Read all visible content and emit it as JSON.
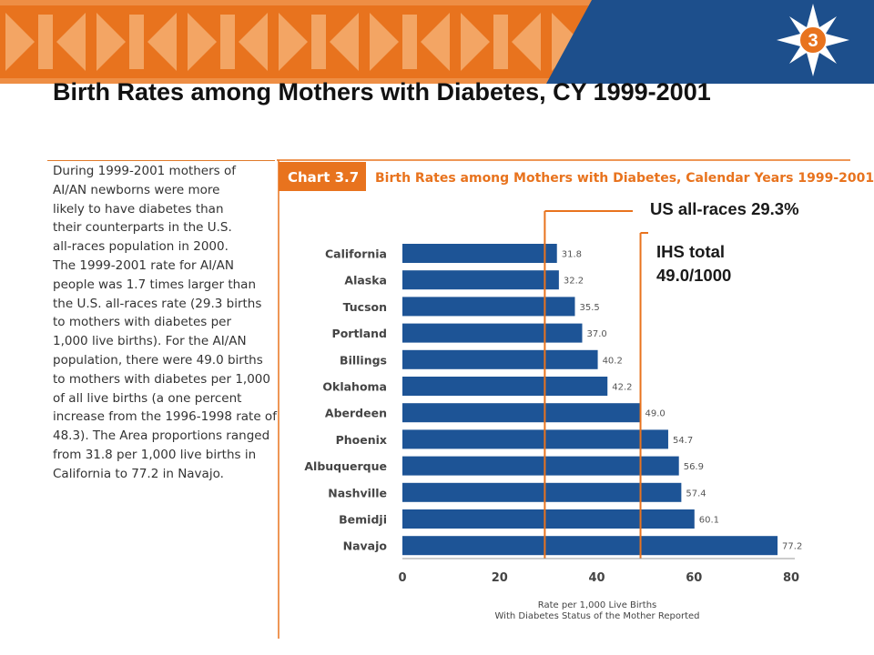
{
  "slide": {
    "title": "Birth Rates among Mothers with Diabetes, CY 1999-2001",
    "badge_number": "3",
    "banner_color": "#e8731e",
    "banner_pattern_color": "#f3a564",
    "banner_dark_color": "#1d4f8c"
  },
  "body_text": [
    "During 1999-2001 mothers of",
    "AI/AN newborns were more",
    "likely to have diabetes than",
    "their counterparts in the U.S.",
    "all-races population in 2000.",
    "The 1999-2001 rate for AI/AN",
    "people was 1.7 times larger than",
    "the U.S. all-races rate (29.3 births",
    "to mothers with diabetes per",
    "1,000 live births). For the AI/AN",
    "population, there were 49.0 births",
    "to mothers with diabetes per 1,000",
    "of all live births (a one percent",
    "increase from the 1996-1998 rate of",
    "48.3). The Area proportions ranged",
    "from 31.8 per 1,000 live births in",
    "California to 77.2 in Navajo."
  ],
  "chart_data": {
    "type": "bar",
    "orientation": "horizontal",
    "chart_label": "Chart 3.7",
    "title": "Birth Rates among Mothers with Diabetes, Calendar Years 1999-2001",
    "categories": [
      "California",
      "Alaska",
      "Tucson",
      "Portland",
      "Billings",
      "Oklahoma",
      "Aberdeen",
      "Phoenix",
      "Albuquerque",
      "Nashville",
      "Bemidji",
      "Navajo"
    ],
    "values": [
      31.8,
      32.2,
      35.5,
      37.0,
      40.2,
      42.2,
      49.0,
      54.7,
      56.9,
      57.4,
      60.1,
      77.2
    ],
    "value_labels": [
      "31.8",
      "32.2",
      "35.5",
      "37.0",
      "40.2",
      "42.2",
      "49.0",
      "54.7",
      "56.9",
      "57.4",
      "60.1",
      "77.2"
    ],
    "xlabel_lines": [
      "Rate per 1,000 Live Births",
      "With Diabetes Status of the Mother Reported"
    ],
    "xlim": [
      0,
      80
    ],
    "xticks": [
      0,
      20,
      40,
      60,
      80
    ],
    "grid": false,
    "bar_color": "#1d5496",
    "reference_lines": [
      {
        "label": "US all-races 29.3%",
        "value": 29.3
      },
      {
        "label_lines": [
          "IHS total",
          "49.0/1000"
        ],
        "value": 49.0
      }
    ],
    "accent_color": "#e8731e"
  }
}
